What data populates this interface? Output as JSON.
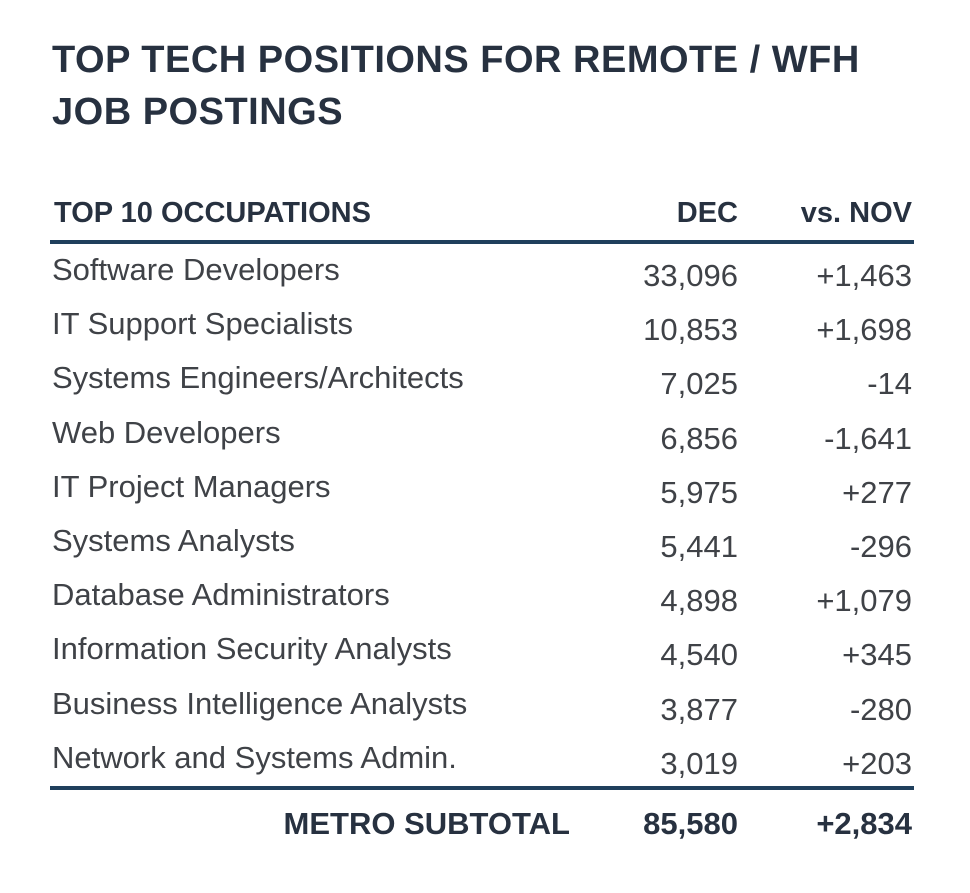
{
  "chart_data": {
    "type": "table",
    "title": "TOP TECH POSITIONS FOR REMOTE / WFH JOB POSTINGS",
    "title_lines": [
      "TOP TECH POSITIONS FOR REMOTE / WFH",
      "JOB POSTINGS"
    ],
    "columns": [
      "TOP 10 OCCUPATIONS",
      "DEC",
      "vs. NOV"
    ],
    "rows": [
      {
        "occupation": "Software Developers",
        "dec": "33,096",
        "vs_nov": "+1,463"
      },
      {
        "occupation": "IT Support Specialists",
        "dec": "10,853",
        "vs_nov": "+1,698"
      },
      {
        "occupation": "Systems Engineers/Architects",
        "dec": "7,025",
        "vs_nov": "-14"
      },
      {
        "occupation": "Web Developers",
        "dec": "6,856",
        "vs_nov": "-1,641"
      },
      {
        "occupation": "IT Project Managers",
        "dec": "5,975",
        "vs_nov": "+277"
      },
      {
        "occupation": "Systems Analysts",
        "dec": "5,441",
        "vs_nov": "-296"
      },
      {
        "occupation": "Database Administrators",
        "dec": "4,898",
        "vs_nov": "+1,079"
      },
      {
        "occupation": "Information Security Analysts",
        "dec": "4,540",
        "vs_nov": "+345"
      },
      {
        "occupation": "Business Intelligence Analysts",
        "dec": "3,877",
        "vs_nov": "-280"
      },
      {
        "occupation": "Network and Systems Admin.",
        "dec": "3,019",
        "vs_nov": "+203"
      }
    ],
    "total": {
      "label": "METRO SUBTOTAL",
      "dec": "85,580",
      "vs_nov": "+2,834"
    }
  },
  "colors": {
    "title": "#273140",
    "text": "#3f4247",
    "rule": "#1f3f5c",
    "background": "#ffffff"
  }
}
